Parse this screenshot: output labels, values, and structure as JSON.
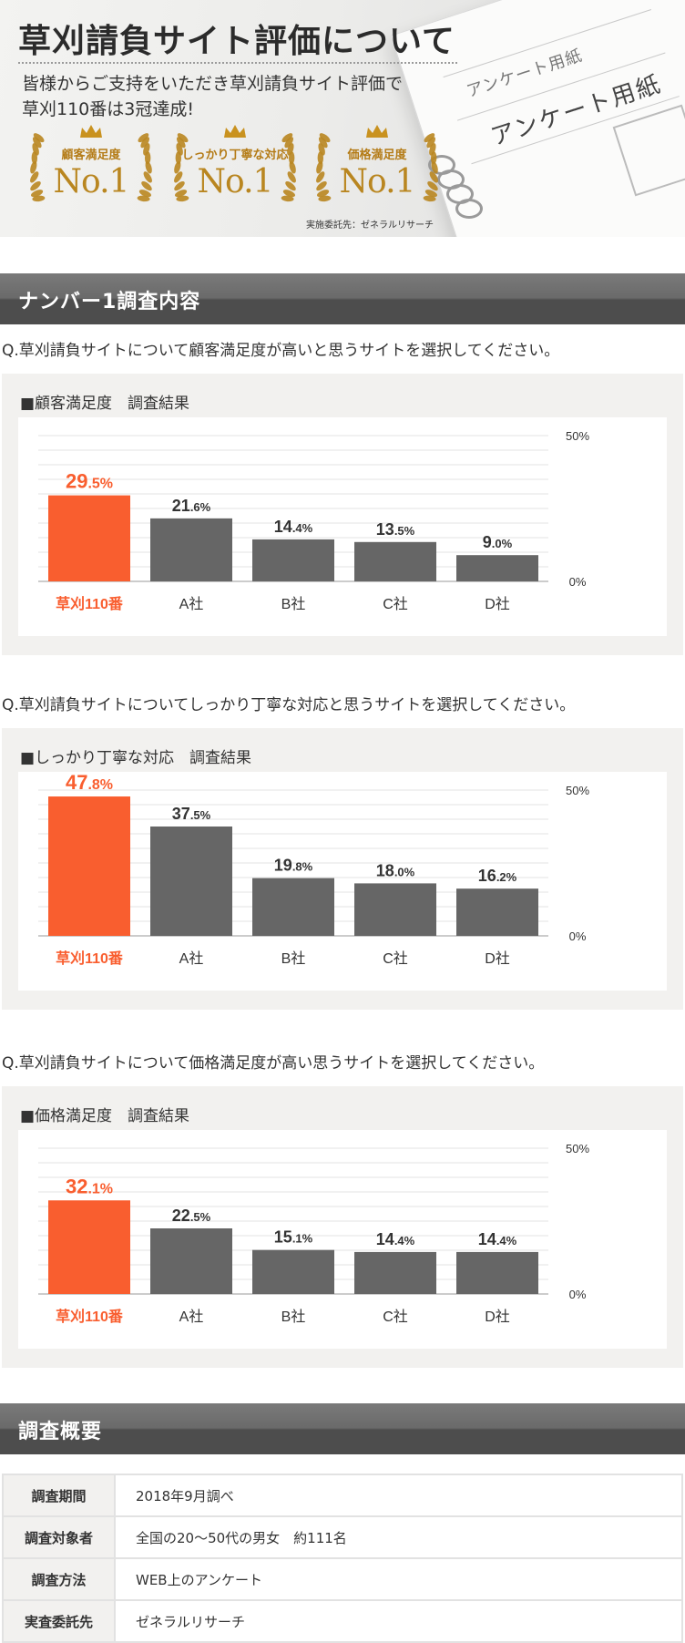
{
  "hero": {
    "title": "草刈請負サイト評価について",
    "subtitle_line1": "皆様からご支持をいただき草刈請負サイト評価で",
    "subtitle_line2": "草刈110番は3冠達成!",
    "badges": [
      {
        "label": "顧客満足度",
        "rank": "No.1"
      },
      {
        "label": "しっかり丁寧な対応",
        "rank": "No.1"
      },
      {
        "label": "価格満足度",
        "rank": "No.1"
      }
    ],
    "credit": "実施委託先：ゼネラルリサーチ",
    "paper_text_1": "アンケート用紙",
    "paper_text_2": "アンケート用紙"
  },
  "survey_section": {
    "title": "ナンバー1調査内容"
  },
  "questions": [
    "Q.草刈請負サイトについて顧客満足度が高いと思うサイトを選択してください。",
    "Q.草刈請負サイトについてしっかり丁寧な対応と思うサイトを選択してください。",
    "Q.草刈請負サイトについて価格満足度が高い思うサイトを選択してください。"
  ],
  "chart_data": [
    {
      "type": "bar",
      "title": "■顧客満足度　調査結果",
      "categories": [
        "草刈110番",
        "A社",
        "B社",
        "C社",
        "D社"
      ],
      "values": [
        29.5,
        21.6,
        14.4,
        13.5,
        9.0
      ],
      "value_labels": [
        [
          "29",
          ".5%"
        ],
        [
          "21",
          ".6%"
        ],
        [
          "14",
          ".4%"
        ],
        [
          "13",
          ".5%"
        ],
        [
          "9",
          ".0%"
        ]
      ],
      "ylim": [
        0,
        50
      ],
      "y_tick_labels": [
        "50%",
        "0%"
      ],
      "grid": true,
      "highlight_index": 0
    },
    {
      "type": "bar",
      "title": "■しっかり丁寧な対応　調査結果",
      "categories": [
        "草刈110番",
        "A社",
        "B社",
        "C社",
        "D社"
      ],
      "values": [
        47.8,
        37.5,
        19.8,
        18.0,
        16.2
      ],
      "value_labels": [
        [
          "47",
          ".8%"
        ],
        [
          "37",
          ".5%"
        ],
        [
          "19",
          ".8%"
        ],
        [
          "18",
          ".0%"
        ],
        [
          "16",
          ".2%"
        ]
      ],
      "ylim": [
        0,
        50
      ],
      "y_tick_labels": [
        "50%",
        "0%"
      ],
      "grid": true,
      "highlight_index": 0
    },
    {
      "type": "bar",
      "title": "■価格満足度　調査結果",
      "categories": [
        "草刈110番",
        "A社",
        "B社",
        "C社",
        "D社"
      ],
      "values": [
        32.1,
        22.5,
        15.1,
        14.4,
        14.4
      ],
      "value_labels": [
        [
          "32",
          ".1%"
        ],
        [
          "22",
          ".5%"
        ],
        [
          "15",
          ".1%"
        ],
        [
          "14",
          ".4%"
        ],
        [
          "14",
          ".4%"
        ]
      ],
      "ylim": [
        0,
        50
      ],
      "y_tick_labels": [
        "50%",
        "0%"
      ],
      "grid": true,
      "highlight_index": 0
    }
  ],
  "colors": {
    "highlight": "#f95e2f",
    "bar": "#666666",
    "grid": "#e3e3e3",
    "gold": "#b98620"
  },
  "overview": {
    "title": "調査概要",
    "rows": [
      {
        "key": "調査期間",
        "value": "2018年9月調べ"
      },
      {
        "key": "調査対象者",
        "value": "全国の20～50代の男女　約111名"
      },
      {
        "key": "調査方法",
        "value": "WEB上のアンケート"
      },
      {
        "key": "実査委託先",
        "value": "ゼネラルリサーチ"
      }
    ]
  }
}
